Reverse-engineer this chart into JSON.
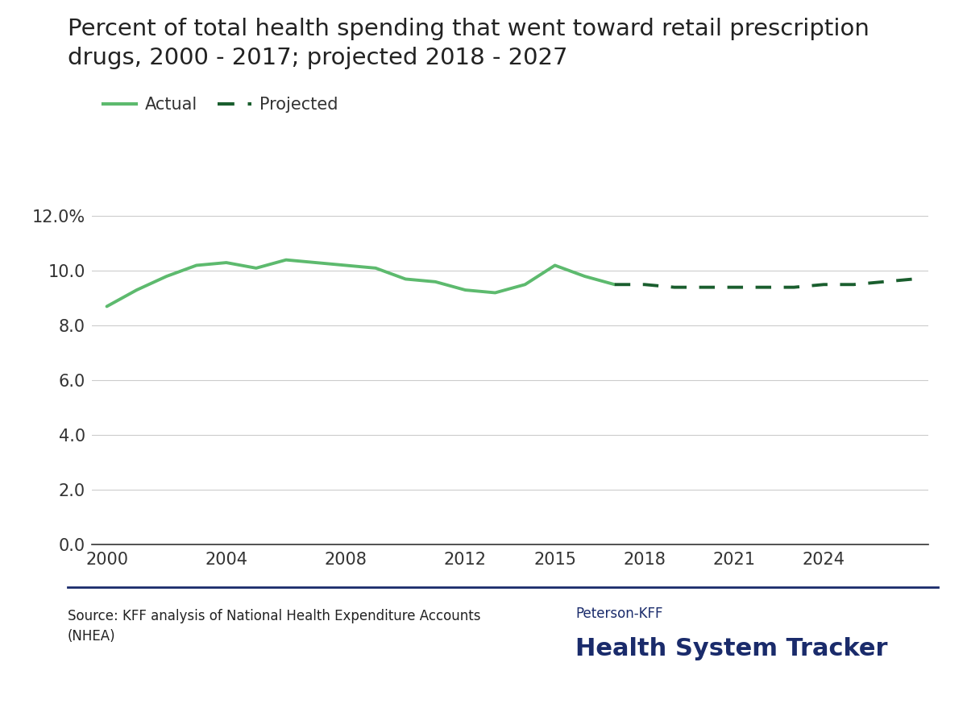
{
  "title_line1": "Percent of total health spending that went toward retail prescription",
  "title_line2": "drugs, 2000 - 2017; projected 2018 - 2027",
  "title_fontsize": 21,
  "source_text": "Source: KFF analysis of National Health Expenditure Accounts\n(NHEA)",
  "brand_top": "Peterson-KFF",
  "brand_bottom": "Health System Tracker",
  "brand_color": "#1a2b6b",
  "actual_color": "#5dba6e",
  "projected_color": "#1a5e2e",
  "background_color": "#ffffff",
  "actual_years": [
    2000,
    2001,
    2002,
    2003,
    2004,
    2005,
    2006,
    2007,
    2008,
    2009,
    2010,
    2011,
    2012,
    2013,
    2014,
    2015,
    2016,
    2017
  ],
  "actual_values": [
    8.7,
    9.3,
    9.8,
    10.2,
    10.3,
    10.1,
    10.4,
    10.3,
    10.2,
    10.1,
    9.7,
    9.6,
    9.3,
    9.2,
    9.5,
    10.2,
    9.8,
    9.5
  ],
  "projected_years": [
    2017,
    2018,
    2019,
    2020,
    2021,
    2022,
    2023,
    2024,
    2025,
    2026,
    2027
  ],
  "projected_values": [
    9.5,
    9.5,
    9.4,
    9.4,
    9.4,
    9.4,
    9.4,
    9.5,
    9.5,
    9.6,
    9.7
  ],
  "ylim": [
    0,
    13
  ],
  "yticks": [
    0.0,
    2.0,
    4.0,
    6.0,
    8.0,
    10.0,
    12.0
  ],
  "ytick_labels": [
    "0.0",
    "2.0",
    "4.0",
    "6.0",
    "8.0",
    "10.0",
    "12.0%"
  ],
  "xticks": [
    2000,
    2004,
    2008,
    2012,
    2015,
    2018,
    2021,
    2024
  ],
  "xlim": [
    1999.5,
    2027.5
  ],
  "grid_color": "#cccccc",
  "axis_color": "#333333",
  "tick_label_fontsize": 15,
  "legend_fontsize": 15,
  "line_width": 2.8,
  "divider_color": "#1a2b6b",
  "legend_actual_label": "Actual",
  "legend_projected_label": "Projected"
}
